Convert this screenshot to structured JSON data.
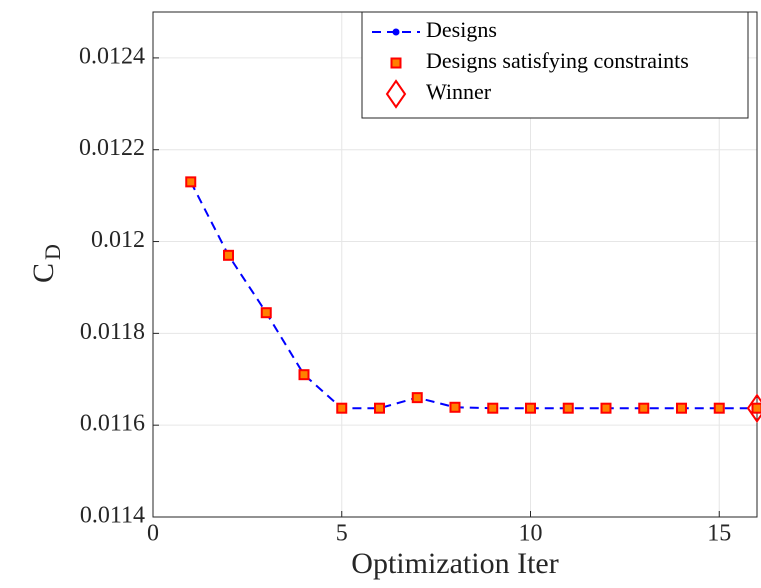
{
  "chart_data": {
    "type": "line",
    "xlabel": "Optimization Iter",
    "ylabel": "C",
    "ylabel_sub": "D",
    "x": [
      1,
      2,
      3,
      4,
      5,
      6,
      7,
      8,
      9,
      10,
      11,
      12,
      13,
      14,
      15,
      16
    ],
    "series": [
      {
        "name": "Designs",
        "color": "#0000ff",
        "values": [
          0.01213,
          0.01197,
          0.011845,
          0.01171,
          0.011637,
          0.011637,
          0.01166,
          0.011639,
          0.011637,
          0.011637,
          0.011637,
          0.011637,
          0.011637,
          0.011637,
          0.011637,
          0.011637
        ]
      },
      {
        "name": "Designs satisfying constraints",
        "color": "#ff0000",
        "fill": "#ff8000",
        "values": [
          0.01213,
          0.01197,
          0.011845,
          0.01171,
          0.011637,
          0.011637,
          0.01166,
          0.011639,
          0.011637,
          0.011637,
          0.011637,
          0.011637,
          0.011637,
          0.011637,
          0.011637,
          0.011637
        ]
      },
      {
        "name": "Winner",
        "color": "#ff0000",
        "x": [
          16
        ],
        "values": [
          0.011637
        ]
      }
    ],
    "xlim": [
      0,
      16
    ],
    "xticks": [
      0,
      5,
      10,
      15
    ],
    "ylim": [
      0.0114,
      0.0125
    ],
    "yticks": [
      0.0114,
      0.0116,
      0.0118,
      0.012,
      0.0122,
      0.0124
    ],
    "grid": true,
    "legend": "upper right"
  }
}
